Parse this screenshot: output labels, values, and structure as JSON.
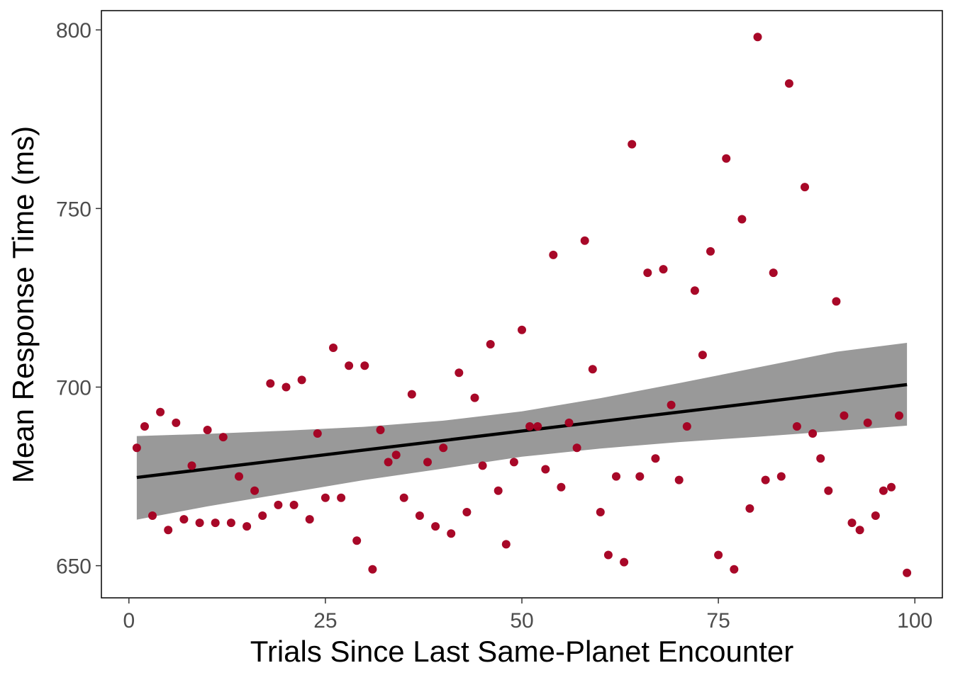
{
  "chart_data": {
    "type": "scatter",
    "title": "",
    "xlabel": "Trials Since Last Same-Planet Encounter",
    "ylabel": "Mean Response Time (ms)",
    "xlim": [
      -3.5,
      103.5
    ],
    "ylim": [
      641,
      805.4
    ],
    "x_ticks": [
      0,
      25,
      50,
      75,
      100
    ],
    "y_ticks": [
      650,
      700,
      750,
      800
    ],
    "grid": false,
    "legend": "none",
    "point_color": "#a50021",
    "ribbon_color": "#999999",
    "line_color": "#000000",
    "points": [
      [
        1,
        683
      ],
      [
        2,
        689
      ],
      [
        3,
        664
      ],
      [
        4,
        693
      ],
      [
        5,
        660
      ],
      [
        6,
        690
      ],
      [
        7,
        663
      ],
      [
        8,
        678
      ],
      [
        9,
        662
      ],
      [
        10,
        688
      ],
      [
        11,
        662
      ],
      [
        12,
        686
      ],
      [
        13,
        662
      ],
      [
        14,
        675
      ],
      [
        15,
        661
      ],
      [
        16,
        671
      ],
      [
        17,
        664
      ],
      [
        18,
        701
      ],
      [
        19,
        667
      ],
      [
        20,
        700
      ],
      [
        21,
        667
      ],
      [
        22,
        702
      ],
      [
        23,
        663
      ],
      [
        24,
        687
      ],
      [
        25,
        669
      ],
      [
        26,
        711
      ],
      [
        27,
        669
      ],
      [
        28,
        706
      ],
      [
        29,
        657
      ],
      [
        30,
        706
      ],
      [
        31,
        649
      ],
      [
        32,
        688
      ],
      [
        33,
        679
      ],
      [
        34,
        681
      ],
      [
        35,
        669
      ],
      [
        36,
        698
      ],
      [
        37,
        664
      ],
      [
        38,
        679
      ],
      [
        39,
        661
      ],
      [
        40,
        683
      ],
      [
        41,
        659
      ],
      [
        42,
        704
      ],
      [
        43,
        665
      ],
      [
        44,
        697
      ],
      [
        45,
        678
      ],
      [
        46,
        712
      ],
      [
        47,
        671
      ],
      [
        48,
        656
      ],
      [
        49,
        679
      ],
      [
        50,
        716
      ],
      [
        51,
        689
      ],
      [
        52,
        689
      ],
      [
        53,
        677
      ],
      [
        54,
        737
      ],
      [
        55,
        672
      ],
      [
        56,
        690
      ],
      [
        57,
        683
      ],
      [
        58,
        741
      ],
      [
        59,
        705
      ],
      [
        60,
        665
      ],
      [
        61,
        653
      ],
      [
        62,
        675
      ],
      [
        63,
        651
      ],
      [
        64,
        768
      ],
      [
        65,
        675
      ],
      [
        66,
        732
      ],
      [
        67,
        680
      ],
      [
        68,
        733
      ],
      [
        69,
        695
      ],
      [
        70,
        674
      ],
      [
        71,
        689
      ],
      [
        72,
        727
      ],
      [
        73,
        709
      ],
      [
        74,
        738
      ],
      [
        75,
        653
      ],
      [
        76,
        764
      ],
      [
        77,
        649
      ],
      [
        78,
        747
      ],
      [
        79,
        666
      ],
      [
        80,
        798
      ],
      [
        81,
        674
      ],
      [
        82,
        732
      ],
      [
        83,
        675
      ],
      [
        84,
        785
      ],
      [
        85,
        689
      ],
      [
        86,
        756
      ],
      [
        87,
        687
      ],
      [
        88,
        680
      ],
      [
        89,
        671
      ],
      [
        90,
        724
      ],
      [
        91,
        692
      ],
      [
        92,
        662
      ],
      [
        93,
        660
      ],
      [
        94,
        690
      ],
      [
        95,
        664
      ],
      [
        96,
        671
      ],
      [
        97,
        672
      ],
      [
        98,
        692
      ],
      [
        99,
        648
      ]
    ],
    "fit_line": {
      "x": [
        1,
        99
      ],
      "y": [
        674.7,
        700.7
      ]
    },
    "confidence_band": {
      "x": [
        1,
        10,
        20,
        30,
        40,
        50,
        60,
        70,
        80,
        90,
        99
      ],
      "upper": [
        686.3,
        686.9,
        687.8,
        688.9,
        690.6,
        693.2,
        696.9,
        701.1,
        705.5,
        709.9,
        712.4
      ],
      "lower": [
        662.9,
        666.6,
        670.3,
        674.0,
        677.2,
        680.5,
        682.8,
        684.6,
        686.1,
        687.7,
        689.2
      ]
    }
  }
}
